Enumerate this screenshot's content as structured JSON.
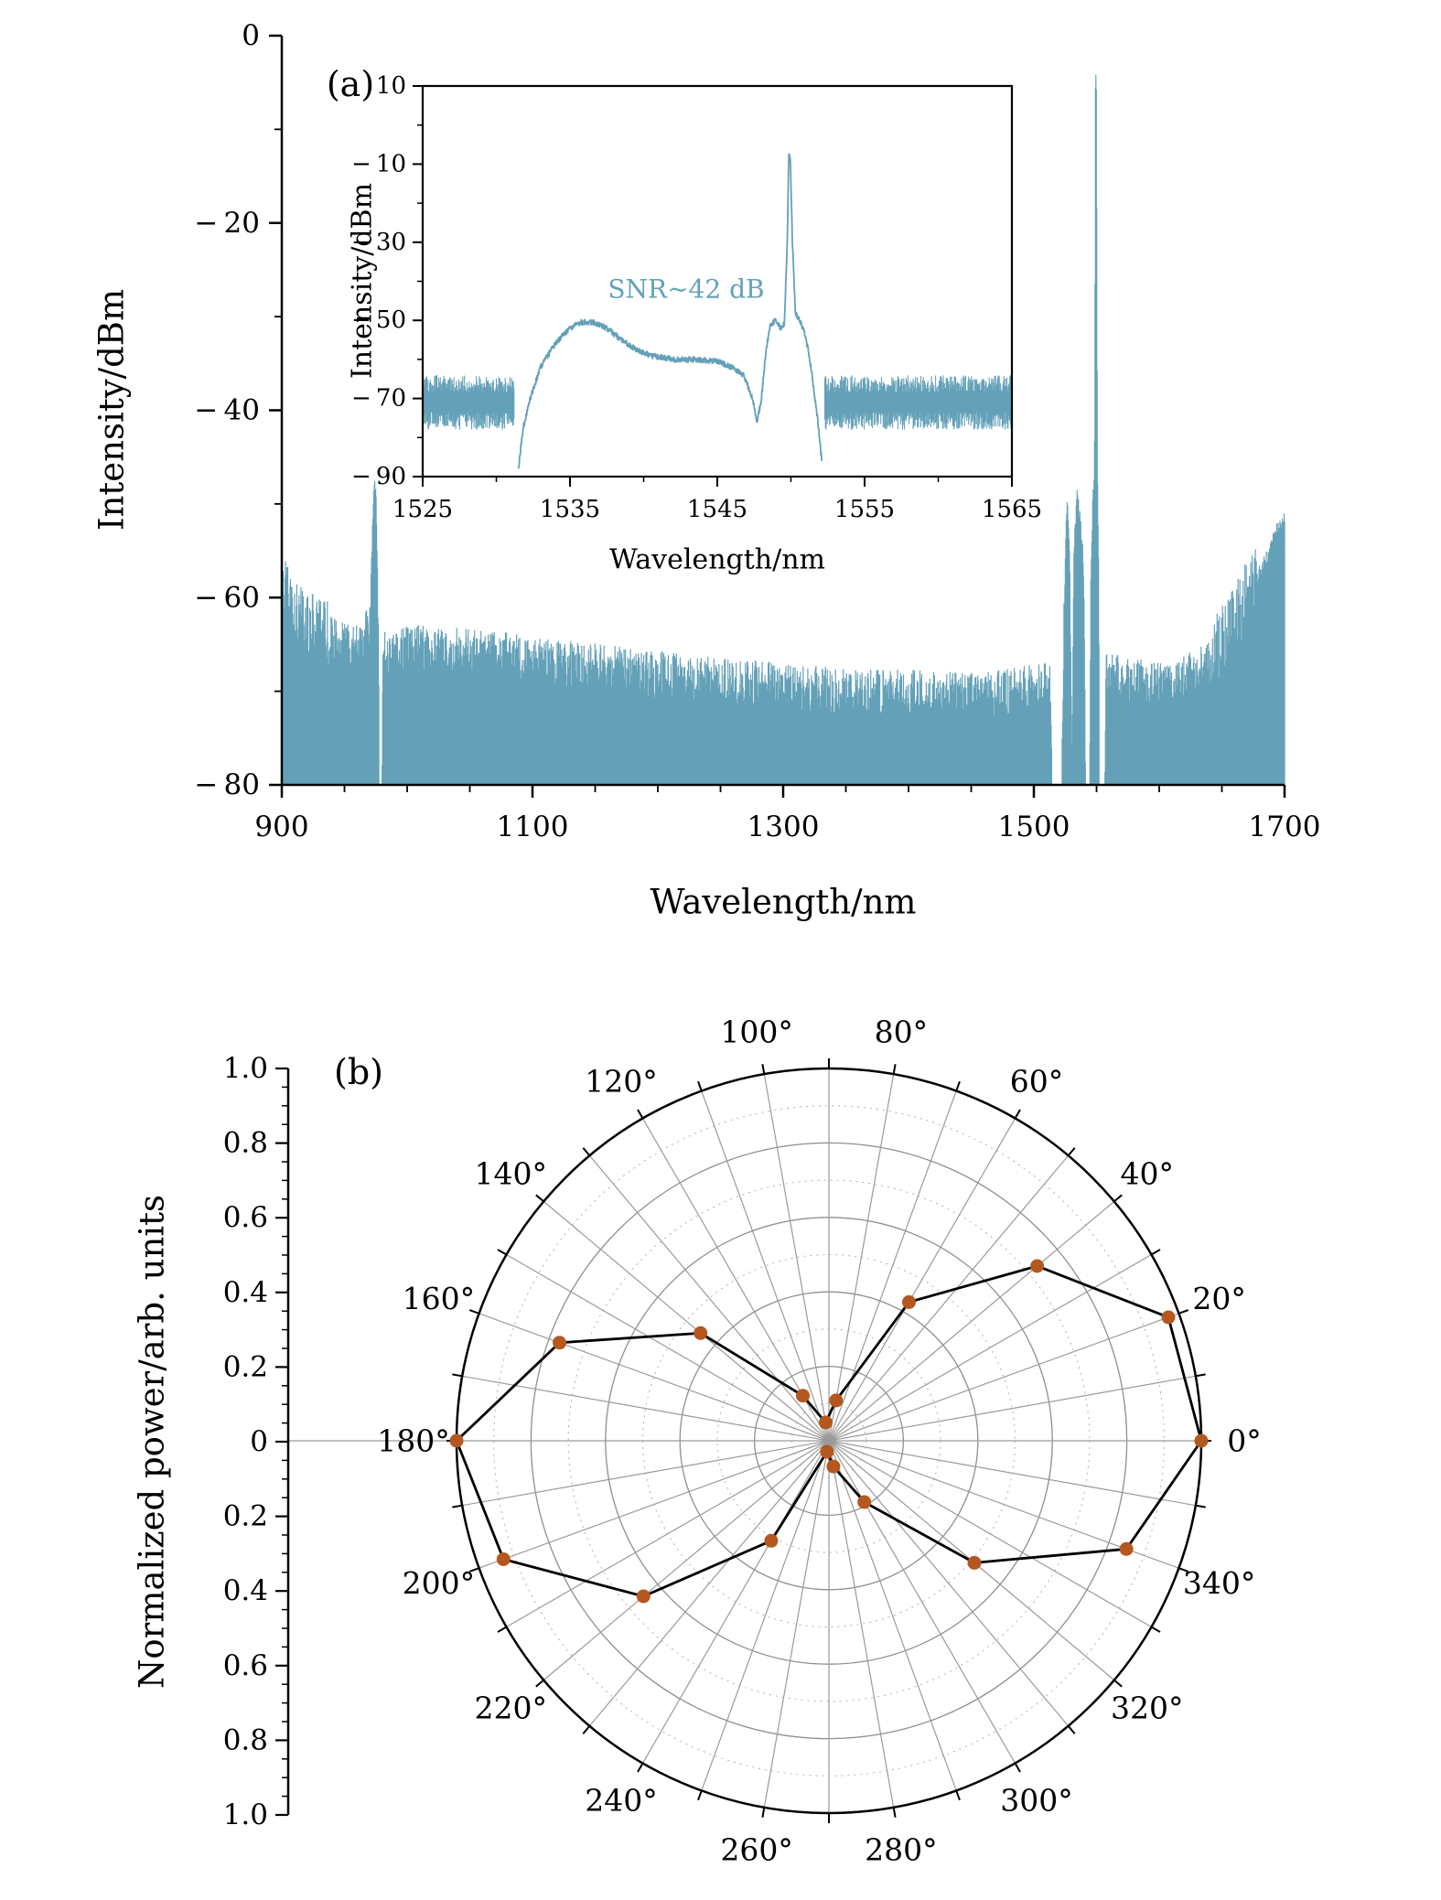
{
  "figure": {
    "background": "#ffffff",
    "spectrum_color": "#64a1b8",
    "marker_color": "#b4581f",
    "line_color": "#000000"
  },
  "chart_data": [
    {
      "id": "panel_a",
      "type": "area",
      "panel_label": "(a)",
      "xlabel": "Wavelength/nm",
      "ylabel": "Intensity/dBm",
      "xlim": [
        900,
        1700
      ],
      "ylim": [
        -80,
        0
      ],
      "xticks": {
        "values": [
          900,
          1100,
          1300,
          1500,
          1700
        ],
        "labels": [
          "900",
          "1100",
          "1300",
          "1500",
          "1700"
        ],
        "minor_step": 50
      },
      "yticks": {
        "values": [
          0,
          -20,
          -40,
          -60,
          -80
        ],
        "labels": [
          "0",
          "− 20",
          "− 40",
          "− 60",
          "− 80"
        ],
        "minor_step": 10
      },
      "grid": false,
      "color": "#64a1b8",
      "fill_to": -80,
      "noise_db": 2.6,
      "envelope": [
        [
          900,
          -59.5
        ],
        [
          912,
          -62
        ],
        [
          925,
          -63.5
        ],
        [
          945,
          -65
        ],
        [
          962,
          -65.5
        ],
        [
          970,
          -63
        ],
        [
          972.5,
          -52
        ],
        [
          973.8,
          -48
        ],
        [
          975.2,
          -48
        ],
        [
          977,
          -62
        ],
        [
          977.8,
          -79
        ],
        [
          979.6,
          -79
        ],
        [
          981,
          -66
        ],
        [
          1000,
          -65.5
        ],
        [
          1060,
          -66
        ],
        [
          1150,
          -67.5
        ],
        [
          1250,
          -69
        ],
        [
          1350,
          -70
        ],
        [
          1440,
          -70.5
        ],
        [
          1490,
          -70
        ],
        [
          1505,
          -69.5
        ],
        [
          1513,
          -69
        ],
        [
          1514.5,
          -80
        ],
        [
          1522,
          -80
        ],
        [
          1524,
          -62
        ],
        [
          1526.5,
          -49
        ],
        [
          1528.5,
          -55
        ],
        [
          1530.5,
          -80
        ],
        [
          1532,
          -55
        ],
        [
          1534.5,
          -48.5
        ],
        [
          1537,
          -52
        ],
        [
          1539.5,
          -56
        ],
        [
          1541.5,
          -80
        ],
        [
          1544.5,
          -80
        ],
        [
          1545.5,
          -57
        ],
        [
          1547,
          -50
        ],
        [
          1548.3,
          -47
        ],
        [
          1548.7,
          -28
        ],
        [
          1549.1,
          -5
        ],
        [
          1549.9,
          -5
        ],
        [
          1550.4,
          -30
        ],
        [
          1551,
          -50
        ],
        [
          1551.8,
          -58
        ],
        [
          1552.4,
          -80
        ],
        [
          1556.5,
          -80
        ],
        [
          1557.5,
          -68.5
        ],
        [
          1580,
          -69
        ],
        [
          1610,
          -69.5
        ],
        [
          1635,
          -67.5
        ],
        [
          1655,
          -64
        ],
        [
          1670,
          -60
        ],
        [
          1682,
          -57
        ],
        [
          1692,
          -53.5
        ],
        [
          1700,
          -51
        ]
      ]
    },
    {
      "id": "panel_a_inset",
      "type": "line",
      "xlabel": "Wavelength/nm",
      "ylabel": "Intensity/dBm",
      "xlim": [
        1525,
        1565
      ],
      "ylim": [
        -90,
        10
      ],
      "xticks": {
        "values": [
          1525,
          1535,
          1545,
          1555,
          1565
        ],
        "labels": [
          "1525",
          "1535",
          "1545",
          "1555",
          "1565"
        ],
        "minor_step": 5
      },
      "yticks": {
        "values": [
          10,
          -10,
          -30,
          -50,
          -70,
          -90
        ],
        "labels": [
          "10",
          "− 10",
          "− 30",
          "− 50",
          "− 70",
          "− 90"
        ],
        "minor_step": 10
      },
      "annotation": {
        "text": "SNR∼42 dB",
        "x": 1536,
        "y": -38
      },
      "color": "#64a1b8",
      "segments": [
        {
          "kind": "noise_band",
          "x0": 1525,
          "x1": 1531.2,
          "center": -71,
          "spread": 7
        },
        {
          "kind": "smooth",
          "noise": 0.7,
          "points": [
            [
              1531.5,
              -88
            ],
            [
              1531.8,
              -78
            ],
            [
              1532.3,
              -70
            ],
            [
              1533,
              -62
            ],
            [
              1534,
              -56
            ],
            [
              1535,
              -52
            ],
            [
              1535.8,
              -50.5
            ],
            [
              1536.6,
              -50.5
            ],
            [
              1537.5,
              -52
            ],
            [
              1538.5,
              -55
            ],
            [
              1539.5,
              -57.5
            ],
            [
              1540.5,
              -59
            ],
            [
              1542,
              -60
            ],
            [
              1543.5,
              -60
            ],
            [
              1545,
              -60.5
            ],
            [
              1546,
              -62
            ],
            [
              1546.8,
              -64
            ],
            [
              1547.4,
              -70
            ],
            [
              1547.7,
              -76
            ],
            [
              1548,
              -70
            ],
            [
              1548.3,
              -58
            ],
            [
              1548.6,
              -51
            ],
            [
              1549,
              -50
            ],
            [
              1549.3,
              -52
            ],
            [
              1549.55,
              -51
            ],
            [
              1549.75,
              -30
            ],
            [
              1549.85,
              -8
            ],
            [
              1549.95,
              -8
            ],
            [
              1550.1,
              -30
            ],
            [
              1550.3,
              -48
            ],
            [
              1550.6,
              -50
            ],
            [
              1550.9,
              -53
            ],
            [
              1551.2,
              -58
            ],
            [
              1551.5,
              -66
            ],
            [
              1551.8,
              -75
            ],
            [
              1552.1,
              -86
            ]
          ]
        },
        {
          "kind": "noise_band",
          "x0": 1552.3,
          "x1": 1565,
          "center": -71,
          "spread": 7
        }
      ]
    },
    {
      "id": "panel_b",
      "type": "polar-line",
      "panel_label": "(b)",
      "ylabel": "Normalized power/arb. units",
      "r_max": 1.0,
      "r_major_step": 0.2,
      "r_minor_step": 0.1,
      "theta_grid_step_deg": 10,
      "theta_labels": [
        "0°",
        "20°",
        "40°",
        "60°",
        "80°",
        "100°",
        "120°",
        "140°",
        "160°",
        "180°",
        "200°",
        "220°",
        "240°",
        "260°",
        "280°",
        "300°",
        "320°",
        "340°"
      ],
      "linear_axis_tick_labels": [
        "1.0",
        "0.8",
        "0.6",
        "0.4",
        "0.2",
        "0",
        "0.2",
        "0.4",
        "0.6",
        "0.8",
        "1.0"
      ],
      "angles_deg": [
        0,
        20,
        40,
        60,
        80,
        100,
        120,
        140,
        160,
        180,
        200,
        220,
        240,
        260,
        280,
        300,
        320,
        340
      ],
      "radii": [
        1.0,
        0.97,
        0.73,
        0.43,
        0.11,
        0.05,
        0.14,
        0.45,
        0.77,
        1.0,
        0.93,
        0.65,
        0.31,
        0.03,
        0.07,
        0.19,
        0.51,
        0.85
      ],
      "close_loop": true,
      "marker_color": "#b4581f",
      "line_color": "#000000"
    }
  ]
}
